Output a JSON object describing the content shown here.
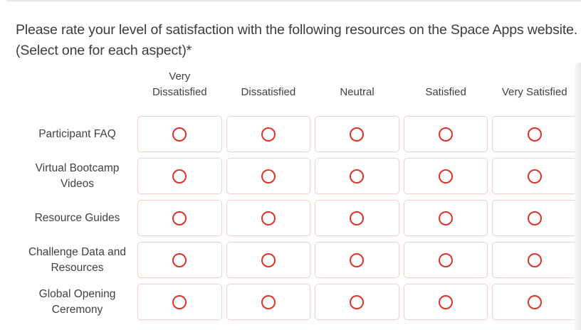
{
  "question": {
    "title": "Please rate your level of satisfaction with the following resources on the Space Apps website. (Select one for each aspect)*"
  },
  "matrix": {
    "columns": [
      "Very Dissatisfied",
      "Dissatisfied",
      "Neutral",
      "Satisfied",
      "Very Satisfied"
    ],
    "rows": [
      "Participant FAQ",
      "Virtual Bootcamp Videos",
      "Resource Guides",
      "Challenge Data and Resources",
      "Global Opening Ceremony"
    ],
    "selection": [
      null,
      null,
      null,
      null,
      null
    ]
  },
  "icons": {
    "radio_unselected": "circle-outline"
  },
  "colors": {
    "radio_ring": "#df3228",
    "cell_border": "#f4d0ca",
    "text": "#404040",
    "top_rule": "#e8e8ec",
    "scrollbar": "#e6e6e6"
  }
}
